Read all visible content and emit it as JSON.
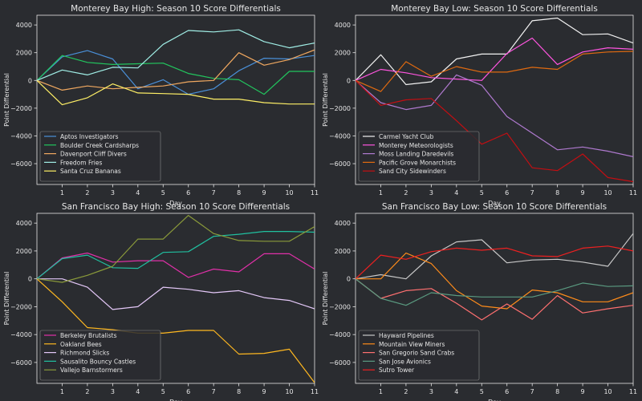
{
  "figure": {
    "background": "#2a2c30",
    "text_color": "#e6e6e6",
    "axis_color": "#e6e6e6",
    "legend_bg": "#2a2c30",
    "legend_border": "#8a8a8a"
  },
  "chart_data": [
    {
      "type": "line",
      "title": "Monterey Bay High: Season 10 Score Differentials",
      "xlabel": "Day",
      "ylabel": "Point Differential",
      "xlim": [
        0,
        11
      ],
      "ylim": [
        -7500,
        4700
      ],
      "xticks": [
        1,
        2,
        3,
        4,
        5,
        6,
        7,
        8,
        9,
        10,
        11
      ],
      "yticks": [
        -6000,
        -4000,
        -2000,
        0,
        2000,
        4000
      ],
      "legend_loc": "lower-left",
      "x": [
        0,
        1,
        2,
        3,
        4,
        5,
        6,
        7,
        8,
        9,
        10,
        11
      ],
      "series": [
        {
          "name": "Aptos Investigators",
          "color": "#4a90d9",
          "values": [
            0,
            1700,
            2150,
            1550,
            -600,
            50,
            -1000,
            -600,
            700,
            1600,
            1550,
            1800
          ]
        },
        {
          "name": "Boulder Creek Cardsharps",
          "color": "#22c55e",
          "values": [
            0,
            1800,
            1300,
            1150,
            1200,
            1250,
            500,
            150,
            50,
            -1000,
            650,
            650
          ]
        },
        {
          "name": "Davenport Cliff Divers",
          "color": "#f0a860",
          "values": [
            0,
            -700,
            -400,
            -600,
            -500,
            -400,
            -100,
            0,
            2000,
            1100,
            1500,
            2200
          ]
        },
        {
          "name": "Freedom Fries",
          "color": "#a0eee6",
          "values": [
            0,
            750,
            400,
            950,
            900,
            2600,
            3600,
            3500,
            3650,
            2800,
            2350,
            2700
          ]
        },
        {
          "name": "Santa Cruz Bananas",
          "color": "#fff066",
          "values": [
            0,
            -1750,
            -1250,
            -250,
            -900,
            -950,
            -1000,
            -1350,
            -1350,
            -1600,
            -1700,
            -1700
          ]
        }
      ]
    },
    {
      "type": "line",
      "title": "Monterey Bay Low: Season 10 Score Differentials",
      "xlabel": "Day",
      "ylabel": "Point Differential",
      "xlim": [
        0,
        11
      ],
      "ylim": [
        -7500,
        4700
      ],
      "xticks": [
        1,
        2,
        3,
        4,
        5,
        6,
        7,
        8,
        9,
        10,
        11
      ],
      "yticks": [
        -6000,
        -4000,
        -2000,
        0,
        2000,
        4000
      ],
      "legend_loc": "lower-left",
      "x": [
        0,
        1,
        2,
        3,
        4,
        5,
        6,
        7,
        8,
        9,
        10,
        11
      ],
      "series": [
        {
          "name": "Carmel Yacht Club",
          "color": "#f2f2f2",
          "values": [
            0,
            1850,
            -300,
            -100,
            1550,
            1900,
            1900,
            4300,
            4500,
            3300,
            3350,
            2700
          ]
        },
        {
          "name": "Monterey Meteorologists",
          "color": "#ff55e0",
          "values": [
            0,
            800,
            550,
            200,
            100,
            0,
            1950,
            3050,
            1150,
            2050,
            2350,
            2250
          ]
        },
        {
          "name": "Moss Landing Daredevils",
          "color": "#b07ad0",
          "values": [
            0,
            -1600,
            -2100,
            -1800,
            400,
            -350,
            -2600,
            -3800,
            -5000,
            -4800,
            -5100,
            -5500
          ]
        },
        {
          "name": "Pacific Grove Monarchists",
          "color": "#e06a10",
          "values": [
            0,
            -800,
            1350,
            300,
            1000,
            600,
            600,
            950,
            800,
            1900,
            2050,
            2100
          ]
        },
        {
          "name": "Sand City Sidewinders",
          "color": "#c40e12",
          "values": [
            0,
            -1800,
            -1400,
            -1300,
            -2900,
            -4600,
            -3800,
            -6300,
            -6500,
            -5300,
            -7000,
            -7300
          ]
        }
      ]
    },
    {
      "type": "line",
      "title": "San Francisco Bay High: Season 10 Score Differentials",
      "xlabel": "Day",
      "ylabel": "Point Differential",
      "xlim": [
        0,
        11
      ],
      "ylim": [
        -7500,
        4700
      ],
      "xticks": [
        1,
        2,
        3,
        4,
        5,
        6,
        7,
        8,
        9,
        10,
        11
      ],
      "yticks": [
        -6000,
        -4000,
        -2000,
        0,
        2000,
        4000
      ],
      "legend_loc": "lower-left",
      "x": [
        0,
        1,
        2,
        3,
        4,
        5,
        6,
        7,
        8,
        9,
        10,
        11
      ],
      "series": [
        {
          "name": "Berkeley Brutalists",
          "color": "#e030a8",
          "values": [
            0,
            1500,
            1850,
            1200,
            1300,
            1300,
            100,
            700,
            500,
            1800,
            1800,
            700
          ]
        },
        {
          "name": "Oakland Bees",
          "color": "#ffb820",
          "values": [
            0,
            -1650,
            -3500,
            -3650,
            -3900,
            -3900,
            -3700,
            -3700,
            -5400,
            -5350,
            -5050,
            -7450
          ]
        },
        {
          "name": "Richmond Slicks",
          "color": "#e4c8f8",
          "values": [
            0,
            0,
            -600,
            -2200,
            -2000,
            -600,
            -750,
            -1000,
            -850,
            -1350,
            -1550,
            -2150
          ]
        },
        {
          "name": "Sausalito Bouncy Castles",
          "color": "#20c0a0",
          "values": [
            0,
            1450,
            1700,
            800,
            750,
            1900,
            1950,
            3050,
            3200,
            3400,
            3400,
            3350
          ]
        },
        {
          "name": "Vallejo Barnstormers",
          "color": "#8a9a3a",
          "values": [
            0,
            -250,
            250,
            900,
            2850,
            2850,
            4550,
            3250,
            2750,
            2700,
            2700,
            3750
          ]
        }
      ]
    },
    {
      "type": "line",
      "title": "San Francisco Bay Low: Season 10 Score Differentials",
      "xlabel": "Day",
      "ylabel": "Point Differential",
      "xlim": [
        0,
        11
      ],
      "ylim": [
        -7500,
        4700
      ],
      "xticks": [
        1,
        2,
        3,
        4,
        5,
        6,
        7,
        8,
        9,
        10,
        11
      ],
      "yticks": [
        -6000,
        -4000,
        -2000,
        0,
        2000,
        4000
      ],
      "legend_loc": "lower-left",
      "x": [
        0,
        1,
        2,
        3,
        4,
        5,
        6,
        7,
        8,
        9,
        10,
        11
      ],
      "series": [
        {
          "name": "Hayward Pipelines",
          "color": "#c8c8c8",
          "values": [
            0,
            300,
            0,
            1650,
            2650,
            2800,
            1150,
            1350,
            1400,
            1200,
            900,
            3250
          ]
        },
        {
          "name": "Mountain View Miners",
          "color": "#ff8c1a",
          "values": [
            0,
            0,
            1850,
            1100,
            -850,
            -1950,
            -2150,
            -800,
            -1000,
            -1650,
            -1650,
            -1000
          ]
        },
        {
          "name": "San Gregorio Sand Crabs",
          "color": "#ff7070",
          "values": [
            0,
            -1400,
            -850,
            -700,
            -1750,
            -2950,
            -1800,
            -2900,
            -1200,
            -2450,
            -2150,
            -1900
          ]
        },
        {
          "name": "San Jose Avionics",
          "color": "#5a9a80",
          "values": [
            0,
            -1400,
            -1900,
            -1000,
            -1200,
            -1300,
            -1300,
            -1300,
            -850,
            -300,
            -550,
            -500
          ]
        },
        {
          "name": "Sutro Tower",
          "color": "#ee2020",
          "values": [
            0,
            1700,
            1400,
            1950,
            2200,
            2050,
            2200,
            1650,
            1600,
            2200,
            2350,
            2000
          ]
        }
      ]
    }
  ]
}
